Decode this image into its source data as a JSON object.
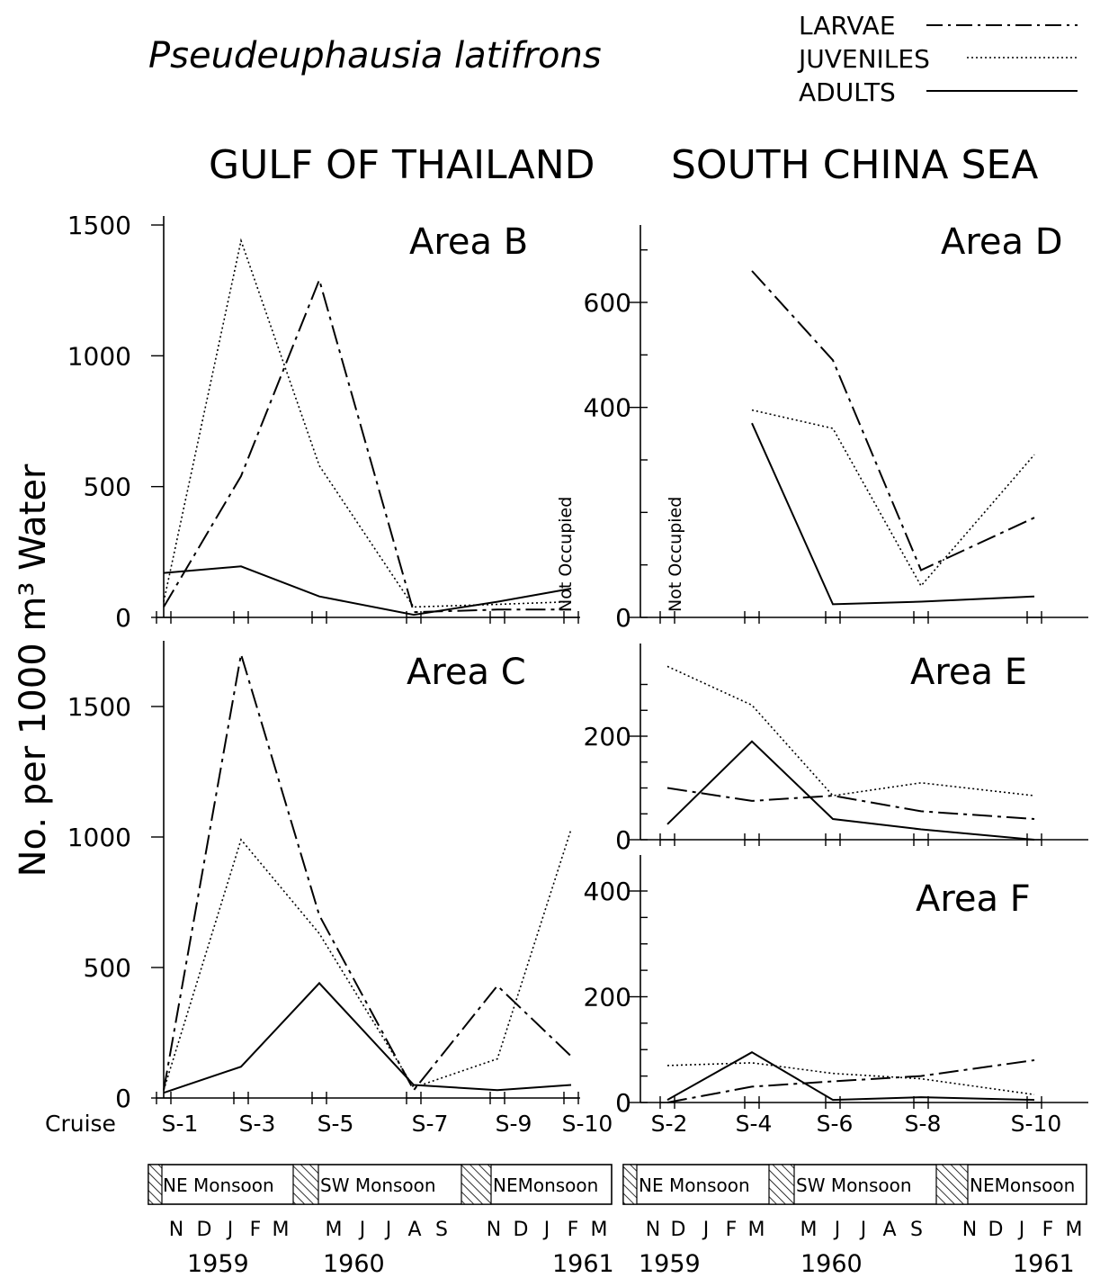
{
  "figure": {
    "species": "Pseudeuphausia latifrons",
    "region_left": "GULF OF THAILAND",
    "region_right": "SOUTH CHINA SEA",
    "ylabel": "No. per 1000 m³ Water",
    "cruise_word": "Cruise",
    "not_occupied": "Not Occupied",
    "legend": [
      {
        "label": "LARVAE",
        "style": "dash-dot"
      },
      {
        "label": "JUVENILES",
        "style": "dotted"
      },
      {
        "label": "ADULTS",
        "style": "solid"
      }
    ],
    "months": [
      "N",
      "D",
      "J",
      "F",
      "M",
      "M",
      "J",
      "J",
      "A",
      "S",
      "N",
      "D",
      "J",
      "F",
      "M"
    ],
    "years": [
      "1959",
      "1960",
      "1961"
    ],
    "seasons": [
      "NE Monsoon",
      "SW Monsoon",
      "NE Monsoon"
    ],
    "seasons_left_last": "NEMonsoon",
    "seasons_right": [
      "NE  Monsoon",
      "SW  Monsoon",
      "NEMonsoon"
    ]
  },
  "chart_data": [
    {
      "type": "line",
      "title": "Area B",
      "region": "GULF OF THAILAND",
      "x": [
        "S-1",
        "S-3",
        "S-5",
        "S-7",
        "S-9",
        "S-10"
      ],
      "yticks": [
        0,
        500,
        1000,
        1500
      ],
      "ylim": [
        0,
        1500
      ],
      "series": [
        {
          "name": "LARVAE",
          "values": [
            40,
            540,
            1290,
            20,
            30,
            30
          ]
        },
        {
          "name": "JUVENILES",
          "values": [
            60,
            1440,
            580,
            40,
            50,
            60
          ]
        },
        {
          "name": "ADULTS",
          "values": [
            170,
            195,
            80,
            10,
            60,
            110
          ]
        }
      ]
    },
    {
      "type": "line",
      "title": "Area C",
      "region": "GULF OF THAILAND",
      "x": [
        "S-1",
        "S-3",
        "S-5",
        "S-7",
        "S-9",
        "S-10"
      ],
      "yticks": [
        0,
        500,
        1000,
        1500
      ],
      "ylim": [
        0,
        1700
      ],
      "series": [
        {
          "name": "LARVAE",
          "values": [
            30,
            1700,
            700,
            30,
            430,
            160
          ]
        },
        {
          "name": "JUVENILES",
          "values": [
            30,
            990,
            630,
            40,
            150,
            1030
          ]
        },
        {
          "name": "ADULTS",
          "values": [
            20,
            120,
            440,
            50,
            30,
            50
          ]
        }
      ]
    },
    {
      "type": "line",
      "title": "Area D",
      "region": "SOUTH CHINA SEA",
      "x": [
        "S-2",
        "S-4",
        "S-6",
        "S-8",
        "S-10"
      ],
      "yticks": [
        0,
        400,
        600
      ],
      "ylim": [
        0,
        700
      ],
      "annotation": "Not Occupied",
      "series": [
        {
          "name": "LARVAE",
          "values": [
            null,
            660,
            490,
            90,
            190
          ]
        },
        {
          "name": "JUVENILES",
          "values": [
            null,
            395,
            360,
            60,
            310
          ]
        },
        {
          "name": "ADULTS",
          "values": [
            null,
            370,
            25,
            30,
            40
          ]
        }
      ]
    },
    {
      "type": "line",
      "title": "Area E",
      "region": "SOUTH CHINA SEA",
      "x": [
        "S-2",
        "S-4",
        "S-6",
        "S-8",
        "S-10"
      ],
      "yticks": [
        0,
        200
      ],
      "ylim": [
        0,
        320
      ],
      "series": [
        {
          "name": "LARVAE",
          "values": [
            100,
            75,
            85,
            55,
            40
          ]
        },
        {
          "name": "JUVENILES",
          "values": [
            335,
            260,
            85,
            110,
            85
          ]
        },
        {
          "name": "ADULTS",
          "values": [
            30,
            190,
            40,
            20,
            0
          ]
        }
      ]
    },
    {
      "type": "line",
      "title": "Area F",
      "region": "SOUTH CHINA SEA",
      "x": [
        "S-2",
        "S-4",
        "S-6",
        "S-8",
        "S-10"
      ],
      "yticks": [
        0,
        200,
        400
      ],
      "ylim": [
        0,
        420
      ],
      "series": [
        {
          "name": "LARVAE",
          "values": [
            0,
            30,
            40,
            50,
            80
          ]
        },
        {
          "name": "JUVENILES",
          "values": [
            70,
            75,
            55,
            45,
            15
          ]
        },
        {
          "name": "ADULTS",
          "values": [
            5,
            95,
            5,
            10,
            5
          ]
        }
      ]
    }
  ]
}
